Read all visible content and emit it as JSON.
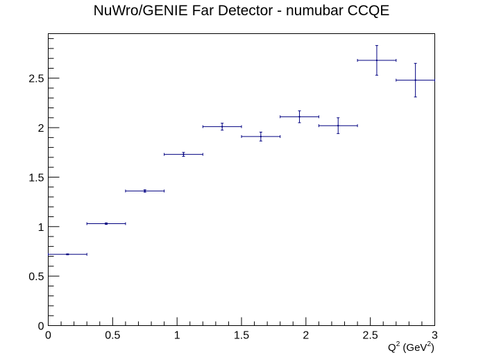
{
  "chart_data": {
    "type": "scatter",
    "title": "NuWro/GENIE Far Detector - numubar CCQE",
    "xlabel": "Q^2 (GeV^2)",
    "xlabel_parts": {
      "q": "Q",
      "q_exp": "2",
      "unit_open": " (GeV",
      "unit_exp": "2",
      "unit_close": ")"
    },
    "ylabel": "",
    "xlim": [
      0,
      3
    ],
    "ylim": [
      0,
      2.95
    ],
    "x_ticks": [
      "0",
      "0.5",
      "1",
      "1.5",
      "2",
      "2.5",
      "3"
    ],
    "y_ticks": [
      "0",
      "0.5",
      "1",
      "1.5",
      "2",
      "2.5"
    ],
    "grid": false,
    "marker_color": "#000080",
    "points": [
      {
        "x": 0.15,
        "x_err": 0.15,
        "y": 0.72,
        "y_err": 0.005
      },
      {
        "x": 0.45,
        "x_err": 0.15,
        "y": 1.03,
        "y_err": 0.008
      },
      {
        "x": 0.75,
        "x_err": 0.15,
        "y": 1.36,
        "y_err": 0.012
      },
      {
        "x": 1.05,
        "x_err": 0.15,
        "y": 1.73,
        "y_err": 0.02
      },
      {
        "x": 1.35,
        "x_err": 0.15,
        "y": 2.01,
        "y_err": 0.035
      },
      {
        "x": 1.65,
        "x_err": 0.15,
        "y": 1.91,
        "y_err": 0.045
      },
      {
        "x": 1.95,
        "x_err": 0.15,
        "y": 2.11,
        "y_err": 0.06
      },
      {
        "x": 2.25,
        "x_err": 0.15,
        "y": 2.02,
        "y_err": 0.08
      },
      {
        "x": 2.55,
        "x_err": 0.15,
        "y": 2.68,
        "y_err": 0.15
      },
      {
        "x": 2.85,
        "x_err": 0.15,
        "y": 2.48,
        "y_err": 0.17
      }
    ]
  }
}
